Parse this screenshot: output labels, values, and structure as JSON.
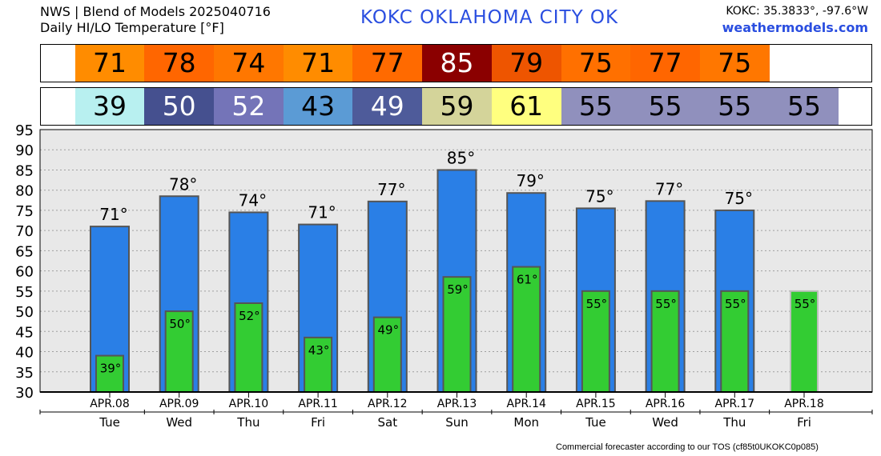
{
  "header": {
    "line1": "NWS | Blend of Models 2025040716",
    "line2": "Daily HI/LO Temperature [°F]",
    "station": "KOKC   OKLAHOMA CITY   OK",
    "coords": "KOKC: 35.3833°, -97.6°W",
    "site": "weathermodels.com"
  },
  "footer": "Commercial forecaster according to our TOS (cf85t0UKOKC0p085)",
  "colors": {
    "hi_bar": "#2a7fe6",
    "lo_bar": "#33cc33",
    "hi_cells": [
      "#ff8c00",
      "#ff6600",
      "#ff7700",
      "#ff8c00",
      "#ff6a00",
      "#8b0000",
      "#ee5500",
      "#ff7000",
      "#ff6600",
      "#ff7700"
    ],
    "lo_cells": [
      "#b8f0f0",
      "#45508f",
      "#7474b8",
      "#5b9bd5",
      "#4e5b9a",
      "#d4d49a",
      "#ffff7f",
      "#9090bd",
      "#9090bd",
      "#9090bd",
      "#9090bd"
    ]
  },
  "chart_data": {
    "type": "bar",
    "categories": [
      "APR.08",
      "APR.09",
      "APR.10",
      "APR.11",
      "APR.12",
      "APR.13",
      "APR.14",
      "APR.15",
      "APR.16",
      "APR.17",
      "APR.18"
    ],
    "days": [
      "Tue",
      "Wed",
      "Thu",
      "Fri",
      "Sat",
      "Sun",
      "Mon",
      "Tue",
      "Wed",
      "Thu",
      "Fri"
    ],
    "series": [
      {
        "values": [
          71,
          78.5,
          74.5,
          71.5,
          77.2,
          85,
          79.3,
          75.5,
          77.3,
          75,
          null
        ],
        "labels": [
          "71°",
          "78°",
          "74°",
          "71°",
          "77°",
          "85°",
          "79°",
          "75°",
          "77°",
          "75°",
          ""
        ]
      },
      {
        "values": [
          39,
          50,
          52,
          43.5,
          48.5,
          58.5,
          61,
          55,
          55,
          55,
          55
        ],
        "labels": [
          "39°",
          "50°",
          "52°",
          "43°",
          "49°",
          "59°",
          "61°",
          "55°",
          "55°",
          "55°",
          "55°"
        ]
      }
    ],
    "hi_strip": [
      "71",
      "78",
      "74",
      "71",
      "77",
      "85",
      "79",
      "75",
      "77",
      "75"
    ],
    "lo_strip": [
      "39",
      "50",
      "52",
      "43",
      "49",
      "59",
      "61",
      "55",
      "55",
      "55",
      "55"
    ],
    "yticks": [
      30,
      35,
      40,
      45,
      50,
      55,
      60,
      65,
      70,
      75,
      80,
      85,
      90,
      95
    ],
    "ylim": [
      30,
      95
    ],
    "grid": true
  }
}
